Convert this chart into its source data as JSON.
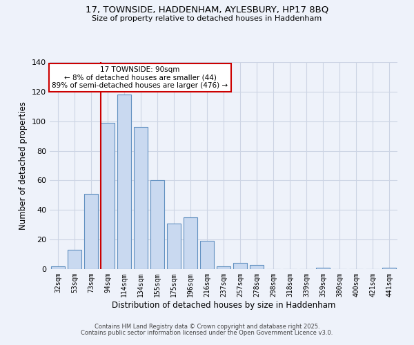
{
  "title1": "17, TOWNSIDE, HADDENHAM, AYLESBURY, HP17 8BQ",
  "title2": "Size of property relative to detached houses in Haddenham",
  "xlabel": "Distribution of detached houses by size in Haddenham",
  "ylabel": "Number of detached properties",
  "bar_labels": [
    "32sqm",
    "53sqm",
    "73sqm",
    "94sqm",
    "114sqm",
    "134sqm",
    "155sqm",
    "175sqm",
    "196sqm",
    "216sqm",
    "237sqm",
    "257sqm",
    "278sqm",
    "298sqm",
    "318sqm",
    "339sqm",
    "359sqm",
    "380sqm",
    "400sqm",
    "421sqm",
    "441sqm"
  ],
  "bar_values": [
    2,
    13,
    51,
    99,
    118,
    96,
    60,
    31,
    35,
    19,
    2,
    4,
    3,
    0,
    0,
    0,
    1,
    0,
    0,
    0,
    1
  ],
  "bar_color": "#c9d9f0",
  "bar_edgecolor": "#6090c0",
  "bg_color": "#eef2fa",
  "grid_color": "#ccd4e4",
  "vline_color": "#cc0000",
  "vline_index": 3,
  "annotation_title": "17 TOWNSIDE: 90sqm",
  "annotation_line1": "← 8% of detached houses are smaller (44)",
  "annotation_line2": "89% of semi-detached houses are larger (476) →",
  "annotation_box_edgecolor": "#cc0000",
  "annotation_box_facecolor": "#ffffff",
  "ylim_max": 140,
  "yticks": [
    0,
    20,
    40,
    60,
    80,
    100,
    120,
    140
  ],
  "footer1": "Contains HM Land Registry data © Crown copyright and database right 2025.",
  "footer2": "Contains public sector information licensed under the Open Government Licence v3.0."
}
